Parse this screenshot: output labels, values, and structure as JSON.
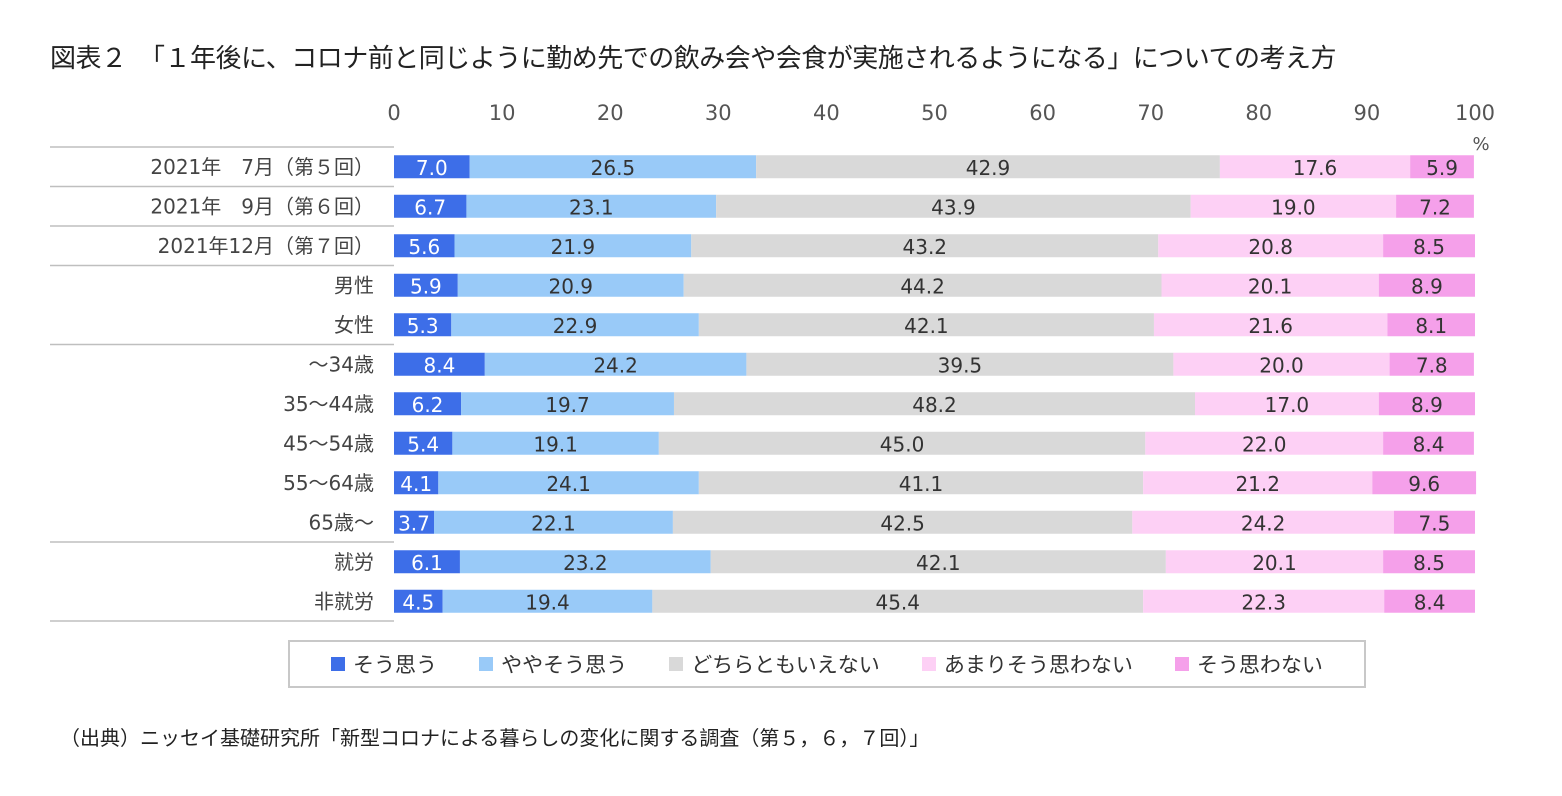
{
  "chart_data": {
    "type": "bar",
    "orientation": "horizontal",
    "stacked": true,
    "title": "図表２　「１年後に、コロナ前と同じように勤め先での飲み会や会食が実施されるようになる」についての考え方",
    "xlim": [
      0,
      100
    ],
    "xticks": [
      "0",
      "10",
      "20",
      "30",
      "40",
      "50",
      "60",
      "70",
      "80",
      "90",
      "100"
    ],
    "unit_label": "%",
    "categories": [
      "2021年　7月（第５回）",
      "2021年　9月（第６回）",
      "2021年12月（第７回）",
      "男性",
      "女性",
      "～34歳",
      "35～44歳",
      "45～54歳",
      "55～64歳",
      "65歳～",
      "就労",
      "非就労"
    ],
    "group_breaks_after": [
      0,
      1,
      2,
      4,
      9
    ],
    "series": [
      {
        "name": "そう思う",
        "color": "#3d6ee8",
        "values": [
          7.0,
          6.7,
          5.6,
          5.9,
          5.3,
          8.4,
          6.2,
          5.4,
          4.1,
          3.7,
          6.1,
          4.5
        ]
      },
      {
        "name": "ややそう思う",
        "color": "#99caf8",
        "values": [
          26.5,
          23.1,
          21.9,
          20.9,
          22.9,
          24.2,
          19.7,
          19.1,
          24.1,
          22.1,
          23.2,
          19.4
        ]
      },
      {
        "name": "どちらともいえない",
        "color": "#d9d9d9",
        "values": [
          42.9,
          43.9,
          43.2,
          44.2,
          42.1,
          39.5,
          48.2,
          45.0,
          41.1,
          42.5,
          42.1,
          45.4
        ]
      },
      {
        "name": "あまりそう思わない",
        "color": "#fdd0f5",
        "values": [
          17.6,
          19.0,
          20.8,
          20.1,
          21.6,
          20.0,
          17.0,
          22.0,
          21.2,
          24.2,
          20.1,
          22.3
        ]
      },
      {
        "name": "そう思わない",
        "color": "#f5a0ea",
        "values": [
          5.9,
          7.2,
          8.5,
          8.9,
          8.1,
          7.8,
          8.9,
          8.4,
          9.6,
          7.5,
          8.5,
          8.4
        ]
      }
    ],
    "legend_position": "bottom"
  },
  "source": "（出典）ニッセイ基礎研究所「新型コロナによる暮らしの変化に関する調査（第５，６，７回）」"
}
